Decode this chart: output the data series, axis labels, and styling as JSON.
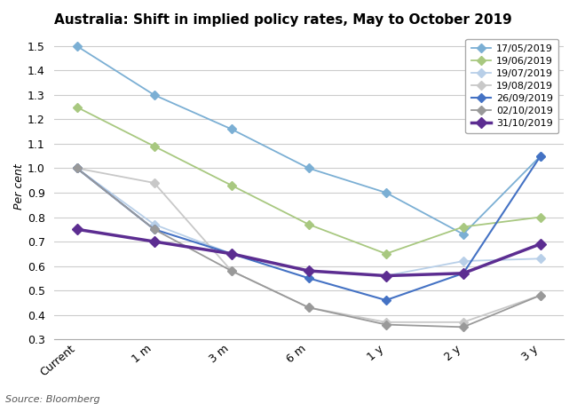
{
  "title": "Australia: Shift in implied policy rates, May to October 2019",
  "ylabel": "Per cent",
  "source": "Source: Bloomberg",
  "x_labels": [
    "Current",
    "1 m",
    "3 m",
    "6 m",
    "1 y",
    "2 y",
    "3 y"
  ],
  "series": [
    {
      "label": "17/05/2019",
      "values": [
        1.5,
        1.3,
        1.16,
        1.0,
        0.9,
        0.73,
        1.05
      ],
      "color": "#7bafd4",
      "marker": "D",
      "linewidth": 1.3,
      "linestyle": "-",
      "markersize": 5
    },
    {
      "label": "19/06/2019",
      "values": [
        1.25,
        1.09,
        0.93,
        0.77,
        0.65,
        0.76,
        0.8
      ],
      "color": "#a8c880",
      "marker": "D",
      "linewidth": 1.3,
      "linestyle": "-",
      "markersize": 5
    },
    {
      "label": "19/07/2019",
      "values": [
        1.0,
        0.77,
        0.65,
        0.58,
        0.56,
        0.62,
        0.63
      ],
      "color": "#b8cfe8",
      "marker": "D",
      "linewidth": 1.3,
      "linestyle": "-",
      "markersize": 5
    },
    {
      "label": "19/08/2019",
      "values": [
        1.0,
        0.94,
        0.58,
        0.43,
        0.37,
        0.37,
        0.48
      ],
      "color": "#c8c8c8",
      "marker": "D",
      "linewidth": 1.3,
      "linestyle": "-",
      "markersize": 5
    },
    {
      "label": "26/09/2019",
      "values": [
        1.0,
        0.75,
        0.65,
        0.55,
        0.46,
        0.57,
        1.05
      ],
      "color": "#4472c4",
      "marker": "D",
      "linewidth": 1.5,
      "linestyle": "-",
      "markersize": 5
    },
    {
      "label": "02/10/2019",
      "values": [
        1.0,
        0.75,
        0.58,
        0.43,
        0.36,
        0.35,
        0.48
      ],
      "color": "#999999",
      "marker": "D",
      "linewidth": 1.3,
      "linestyle": "-",
      "markersize": 5
    },
    {
      "label": "31/10/2019",
      "values": [
        0.75,
        0.7,
        0.65,
        0.58,
        0.56,
        0.57,
        0.69
      ],
      "color": "#5c2d91",
      "marker": "D",
      "linewidth": 2.5,
      "linestyle": "-",
      "markersize": 6
    }
  ],
  "ylim": [
    0.3,
    1.55
  ],
  "yticks": [
    0.3,
    0.4,
    0.5,
    0.6,
    0.7,
    0.8,
    0.9,
    1.0,
    1.1,
    1.2,
    1.3,
    1.4,
    1.5
  ],
  "bg_color": "#ffffff",
  "grid_color": "#cccccc",
  "title_fontsize": 11,
  "label_fontsize": 9,
  "tick_fontsize": 9,
  "legend_fontsize": 8
}
